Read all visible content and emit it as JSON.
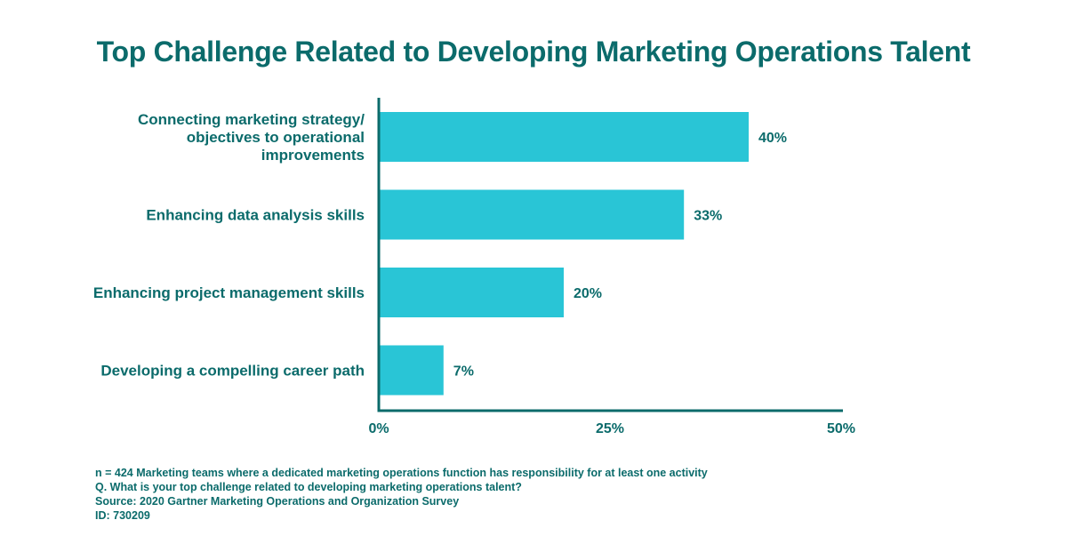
{
  "colors": {
    "text": "#0b6b6b",
    "bar": "#29c5d6",
    "axis": "#0b6b6b"
  },
  "chart_data": {
    "type": "bar",
    "orientation": "horizontal",
    "title": "Top Challenge Related to Developing Marketing Operations Talent",
    "categories": [
      [
        "Connecting marketing strategy/",
        "objectives to operational",
        "improvements"
      ],
      [
        "Enhancing data analysis skills"
      ],
      [
        "Enhancing project management skills"
      ],
      [
        "Developing a compelling career path"
      ]
    ],
    "values": [
      40,
      33,
      20,
      7
    ],
    "value_labels": [
      "40%",
      "33%",
      "20%",
      "7%"
    ],
    "xlim": [
      0,
      50
    ],
    "xticks": [
      0,
      25,
      50
    ],
    "xtick_labels": [
      "0%",
      "25%",
      "50%"
    ],
    "grid": false,
    "legend": "none"
  },
  "footnotes": [
    "n = 424 Marketing teams where a dedicated marketing operations function has responsibility for at least one activity",
    "Q. What is your top challenge related to developing marketing operations talent?",
    "Source: 2020 Gartner Marketing Operations and Organization Survey",
    "ID: 730209"
  ]
}
